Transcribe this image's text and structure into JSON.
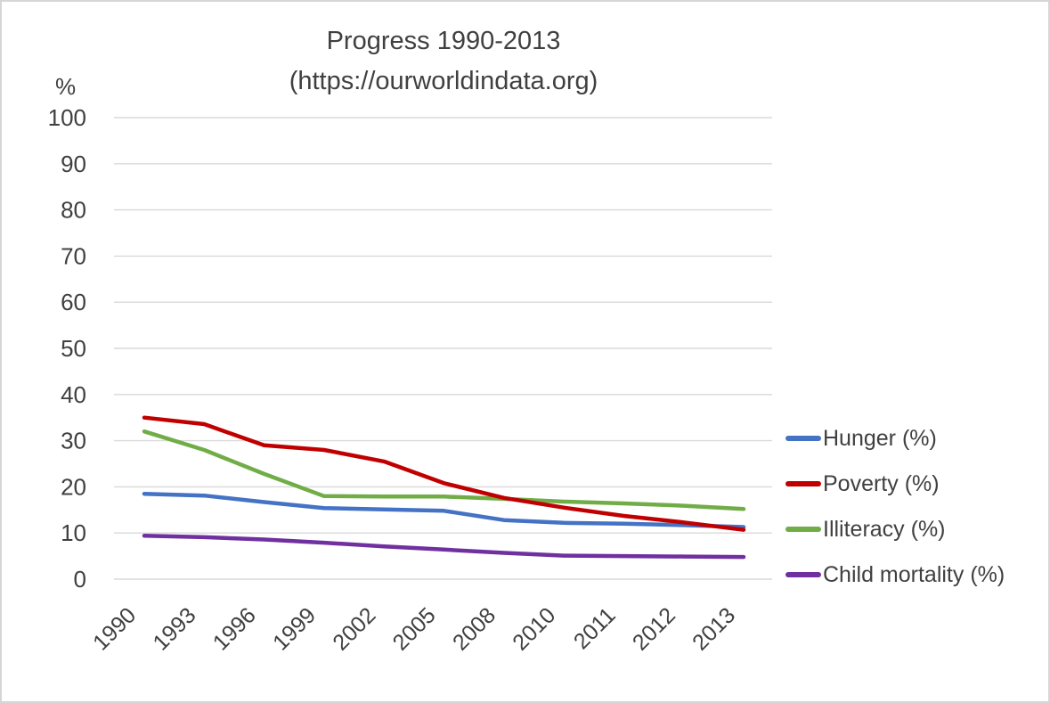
{
  "header": {
    "title_line1": "Progress 1990-2013",
    "title_line2": "(https://ourworldindata.org)"
  },
  "y_axis": {
    "unit_label": "%"
  },
  "chart_data": {
    "type": "line",
    "title": "Progress 1990-2013",
    "subtitle": "(https://ourworldindata.org)",
    "categories": [
      "1990",
      "1993",
      "1996",
      "1999",
      "2002",
      "2005",
      "2008",
      "2010",
      "2011",
      "2012",
      "2013"
    ],
    "series": [
      {
        "name": "Hunger (%)",
        "color": "#4472C4",
        "values": [
          18.5,
          18.1,
          16.7,
          15.4,
          15.1,
          14.8,
          12.8,
          12.2,
          12.0,
          11.7,
          11.3
        ]
      },
      {
        "name": "Poverty (%)",
        "color": "#C00000",
        "values": [
          35.0,
          33.6,
          29.0,
          28.0,
          25.5,
          20.8,
          17.6,
          15.5,
          13.7,
          12.3,
          10.7
        ]
      },
      {
        "name": "Illiteracy (%)",
        "color": "#70AD47",
        "values": [
          32.0,
          28.0,
          22.8,
          18.0,
          17.9,
          17.9,
          17.4,
          16.8,
          16.4,
          15.9,
          15.2
        ]
      },
      {
        "name": "Child mortality (%)",
        "color": "#7030A0",
        "values": [
          9.4,
          9.1,
          8.6,
          7.9,
          7.1,
          6.4,
          5.7,
          5.1,
          5.0,
          4.9,
          4.8
        ]
      }
    ],
    "ylabel": "%",
    "xlabel": "",
    "ylim": [
      0,
      100
    ],
    "yticks": [
      0,
      10,
      20,
      30,
      40,
      50,
      60,
      70,
      80,
      90,
      100
    ],
    "ytick_step": 10,
    "grid": true,
    "gridline_color": "#D9D9D9",
    "axis_text_color": "#404040",
    "x_tick_rotation": 45,
    "legend_position": "right"
  },
  "legend": {
    "items": [
      {
        "label": "Hunger (%)",
        "color": "#4472C4"
      },
      {
        "label": "Poverty (%)",
        "color": "#C00000"
      },
      {
        "label": "Illiteracy (%)",
        "color": "#70AD47"
      },
      {
        "label": "Child mortality (%)",
        "color": "#7030A0"
      }
    ]
  }
}
